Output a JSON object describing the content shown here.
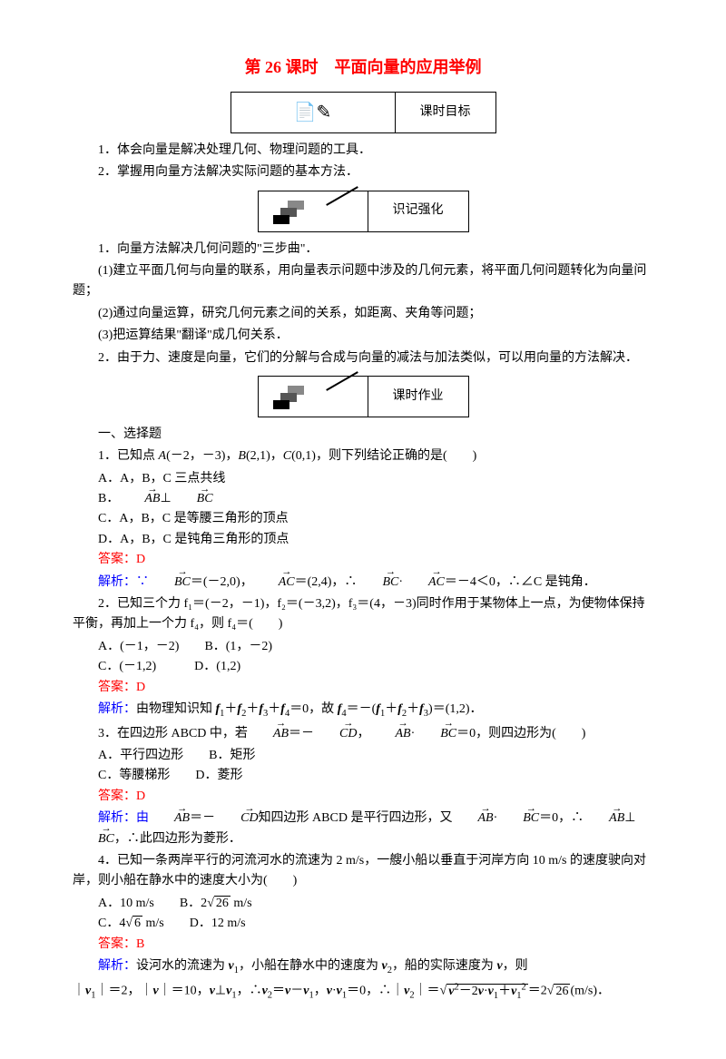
{
  "title": "第 26 课时　平面向量的应用举例",
  "banners": {
    "b1": "课时目标",
    "b2": "识记强化",
    "b3": "课时作业"
  },
  "goals": {
    "g1": "1．体会向量是解决处理几何、物理问题的工具．",
    "g2": "2．掌握用向量方法解决实际问题的基本方法．"
  },
  "memo": {
    "m1": "1．向量方法解决几何问题的\"三步曲\"．",
    "m2": "(1)建立平面几何与向量的联系，用向量表示问题中涉及的几何元素，将平面几何问题转化为向量问题；",
    "m3": "(2)通过向量运算，研究几何元素之间的关系，如距离、夹角等问题；",
    "m4": "(3)把运算结果\"翻译\"成几何关系．",
    "m5": "2．由于力、速度是向量，它们的分解与合成与向量的减法与加法类似，可以用向量的方法解决．"
  },
  "hw": {
    "head": "一、选择题",
    "q1": {
      "stem_a": "1．已知点 ",
      "stem_b": "(－2，－3)，",
      "stem_c": "(2,1)，",
      "stem_d": "(0,1)，则下列结论正确的是(　　)",
      "optA": "A．A，B，C 三点共线",
      "optB_pre": "B．",
      "optC": "C．A，B，C 是等腰三角形的顶点",
      "optD": "D．A，B，C 是钝角三角形的顶点",
      "ans": "答案：D",
      "ana_pre": "解析：∵",
      "ana_mid1": "＝(－2,0)，",
      "ana_mid2": "＝(2,4)，∴",
      "ana_mid3": "·",
      "ana_end": "＝－4＜0，∴∠C 是钝角．"
    },
    "q2": {
      "stem": "2．已知三个力 f₁＝(－2，－1)，f₂＝(－3,2)，f₃＝(4，－3)同时作用于某物体上一点，为使物体保持平衡，再加上一个力 f₄，则 f₄＝(　　)",
      "optA": "A．(－1，－2)",
      "optB": "B．(1，－2)",
      "optC": "C．(－1,2)",
      "optD": "D．(1,2)",
      "ans": "答案：D",
      "ana": "解析：由物理知识知 f₁＋f₂＋f₃＋f₄＝0，故 f₄＝－(f₁＋f₂＋f₃)＝(1,2)．"
    },
    "q3": {
      "stem_a": "3．在四边形 ABCD 中，若",
      "stem_b": "＝－",
      "stem_c": "，",
      "stem_d": "·",
      "stem_e": "＝0，则四边形为(　　)",
      "optA": "A．平行四边形",
      "optB": "B．矩形",
      "optC": "C．等腰梯形",
      "optD": "D．菱形",
      "ans": "答案：D",
      "ana_a": "解析：由",
      "ana_b": "＝－",
      "ana_c": "知四边形 ABCD 是平行四边形，又",
      "ana_d": "·",
      "ana_e": "＝0，∴",
      "ana_f": "⊥",
      "ana_g": "，∴此四边形为菱形．"
    },
    "q4": {
      "stem": "4．已知一条两岸平行的河流河水的流速为 2 m/s，一艘小船以垂直于河岸方向 10 m/s 的速度驶向对岸，则小船在静水中的速度大小为(　　)",
      "optA_pre": "A．10 m/s",
      "optB_pre": "B．2",
      "optB_sqrt": "26",
      "optB_post": " m/s",
      "optC_pre": "C．4",
      "optC_sqrt": "6",
      "optC_post": " m/s",
      "optD": "D．12 m/s",
      "ans": "答案：B",
      "ana_l1": "解析：设河水的流速为 v₁，小船在静水中的速度为 v₂，船的实际速度为 v，则",
      "ana_l2a": "｜v₁｜＝2，｜v｜＝10，v⊥v₁，∴v₂＝v－v₁，v·v₁＝0，∴｜v₂｜＝",
      "ana_l2_sqrt": "v²－2v·v₁＋v₁²",
      "ana_l2b": "＝2",
      "ana_l2_sqrt2": "26",
      "ana_l2c": "(m/s)．"
    }
  },
  "colors": {
    "title": "#ff0000",
    "answer": "#ff0000",
    "analysis": "#0000ff",
    "text": "#000000",
    "bg": "#ffffff"
  }
}
